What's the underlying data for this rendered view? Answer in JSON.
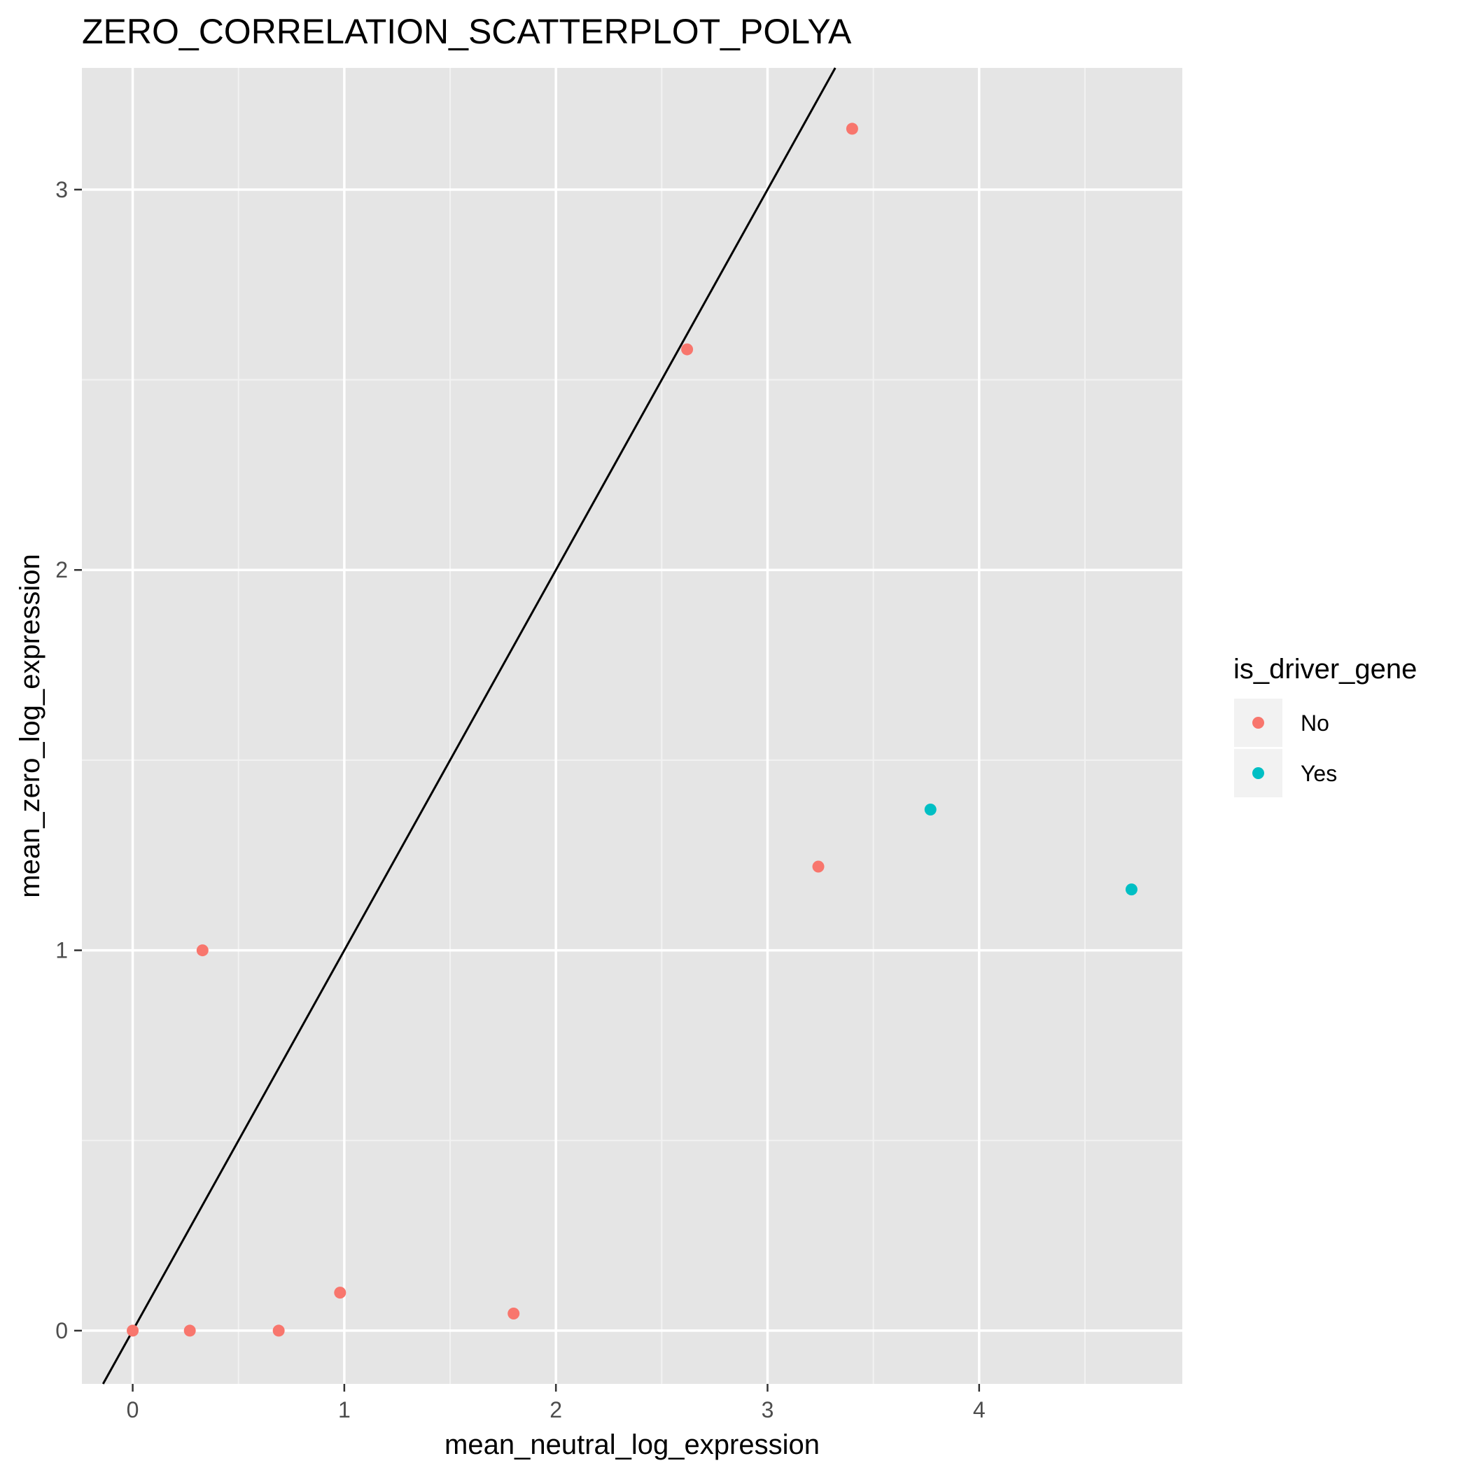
{
  "chart_data": {
    "type": "scatter",
    "title": "ZERO_CORRELATION_SCATTERPLOT_POLYA",
    "xlabel": "mean_neutral_log_expression",
    "ylabel": "mean_zero_log_expression",
    "xlim": [
      -0.24,
      4.96
    ],
    "ylim": [
      -0.14,
      3.32
    ],
    "x_ticks": [
      0,
      1,
      2,
      3,
      4
    ],
    "x_tick_labels": [
      "0",
      "1",
      "2",
      "3",
      "4"
    ],
    "y_ticks": [
      0,
      1,
      2,
      3
    ],
    "y_tick_labels": [
      "0",
      "1",
      "2",
      "3"
    ],
    "grid": true,
    "reference_line": {
      "slope": 1,
      "intercept": 0,
      "color": "#000000"
    },
    "legend": {
      "title": "is_driver_gene",
      "position": "right",
      "entries": [
        {
          "label": "No",
          "color": "#F8766D"
        },
        {
          "label": "Yes",
          "color": "#00BFC4"
        }
      ]
    },
    "series": [
      {
        "name": "No",
        "color": "#F8766D",
        "points": [
          {
            "x": 0.0,
            "y": 0.0
          },
          {
            "x": 0.27,
            "y": 0.0
          },
          {
            "x": 0.33,
            "y": 1.0
          },
          {
            "x": 0.69,
            "y": 0.0
          },
          {
            "x": 0.98,
            "y": 0.1
          },
          {
            "x": 1.8,
            "y": 0.045
          },
          {
            "x": 2.62,
            "y": 2.58
          },
          {
            "x": 3.24,
            "y": 1.22
          },
          {
            "x": 3.4,
            "y": 3.16
          }
        ]
      },
      {
        "name": "Yes",
        "color": "#00BFC4",
        "points": [
          {
            "x": 3.77,
            "y": 1.37
          },
          {
            "x": 4.72,
            "y": 1.16
          }
        ]
      }
    ]
  }
}
